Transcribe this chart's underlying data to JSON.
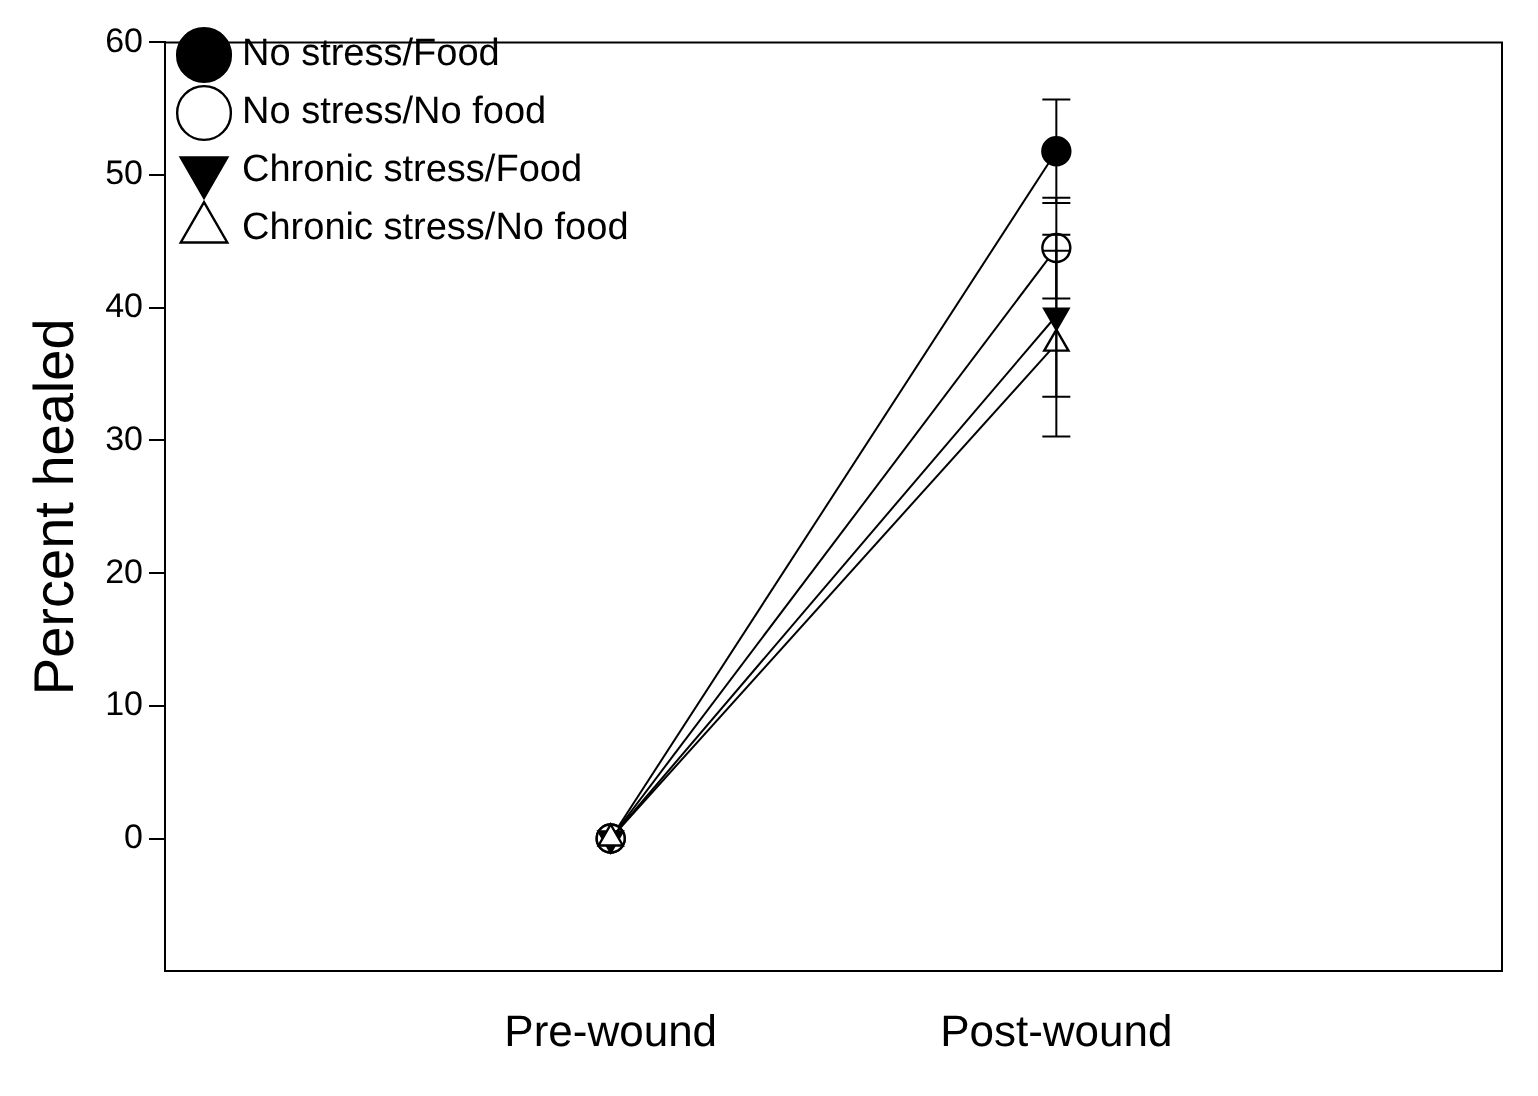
{
  "chart_data": {
    "type": "line",
    "ylabel": "Percent healed",
    "categories": [
      null,
      "Pre-wound",
      "Post-wound",
      null
    ],
    "ylim": [
      -10,
      60
    ],
    "yticks": [
      0,
      10,
      20,
      30,
      40,
      50,
      60
    ],
    "grid": false,
    "legend": "top left",
    "line_style": "solid",
    "series": [
      {
        "name": "No stress/Food",
        "color": "#000000",
        "marker": "circle",
        "values": [
          null,
          0,
          51.8,
          null
        ],
        "errors": [
          null,
          null,
          3.9,
          null
        ]
      },
      {
        "name": "No stress/No food",
        "color": "#ffffff",
        "marker": "circle",
        "values": [
          null,
          0,
          44.5,
          null
        ],
        "errors": [
          null,
          null,
          3.8,
          null
        ]
      },
      {
        "name": "Chronic stress/Food",
        "color": "#000000",
        "marker": "triangle-down",
        "values": [
          null,
          0,
          39.4,
          null
        ],
        "errors": [
          null,
          null,
          6.1,
          null
        ]
      },
      {
        "name": "Chronic stress/No food",
        "color": "#ffffff",
        "marker": "triangle",
        "values": [
          null,
          0,
          37.3,
          null
        ],
        "errors": [
          null,
          null,
          7,
          null
        ]
      }
    ]
  }
}
